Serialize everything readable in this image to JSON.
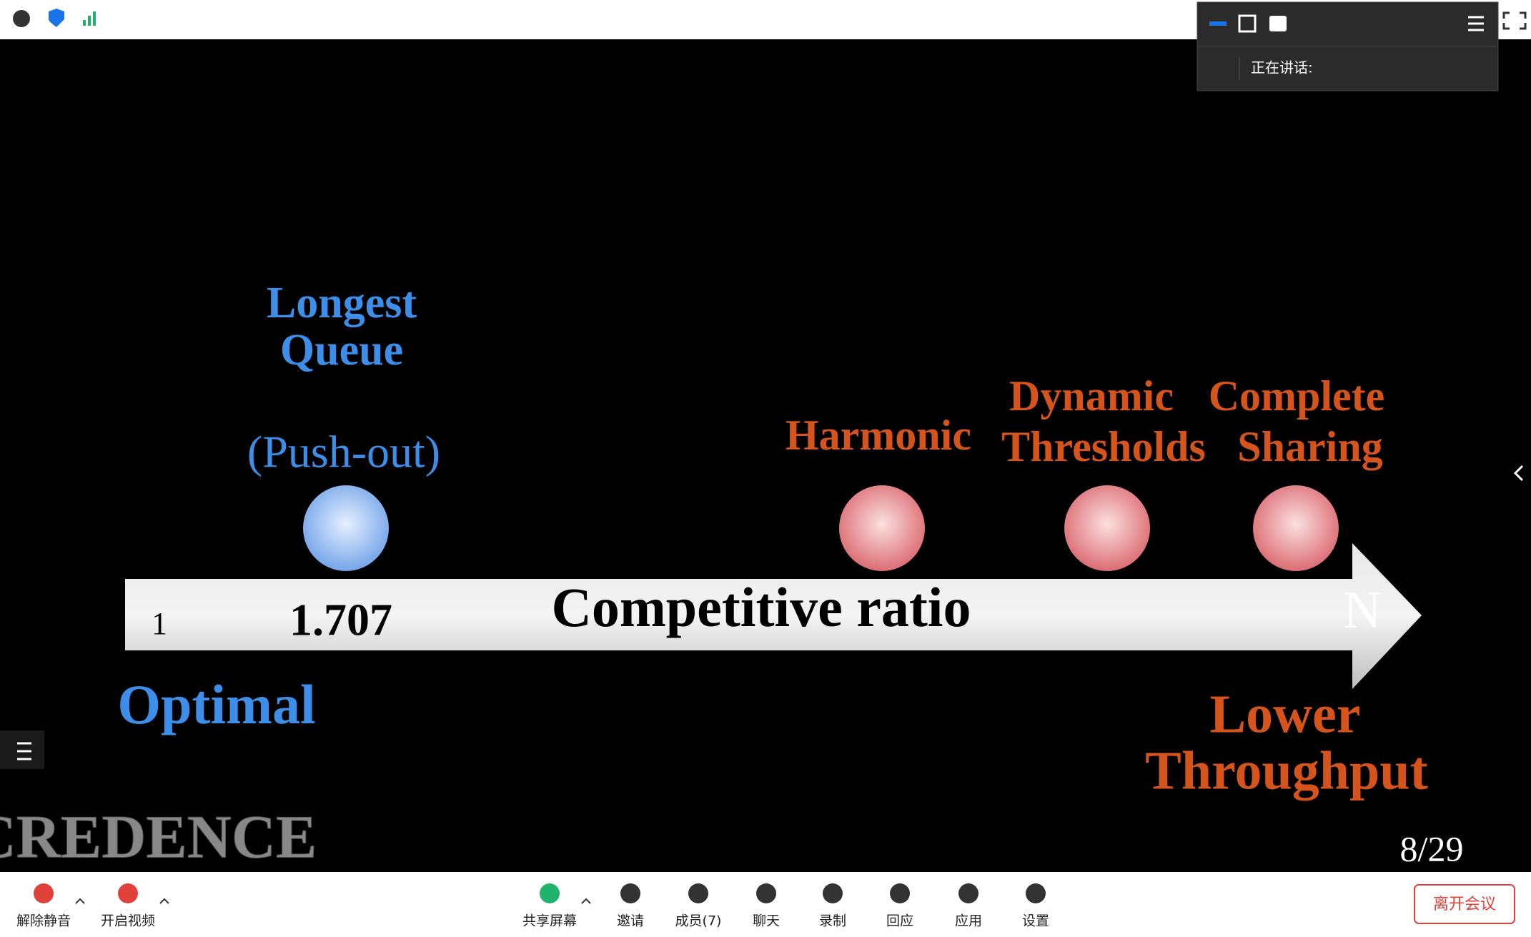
{
  "speaker_panel": {
    "label": "正在讲话:"
  },
  "slide": {
    "top_label": [
      "Longest",
      "Queue"
    ],
    "push_out": "(Push-out)",
    "harmonic": "Harmonic",
    "dynamic_thresholds": [
      "Dynamic",
      "Thresholds"
    ],
    "complete_sharing": [
      "Complete",
      "Sharing"
    ],
    "axis_start": "1",
    "axis_mark": "1.707",
    "axis_title": "Competitive ratio",
    "axis_end": "N",
    "optimal": "Optimal",
    "lower_throughput": [
      "Lower",
      "Throughput"
    ],
    "logo": "CREDENCE",
    "page_number": "8/29"
  },
  "toolbar": {
    "buttons": [
      "解除静音",
      "开启视频",
      "共享屏幕",
      "邀请",
      "成员(7)",
      "聊天",
      "录制",
      "回应",
      "应用",
      "设置"
    ],
    "leave": "离开会议"
  }
}
